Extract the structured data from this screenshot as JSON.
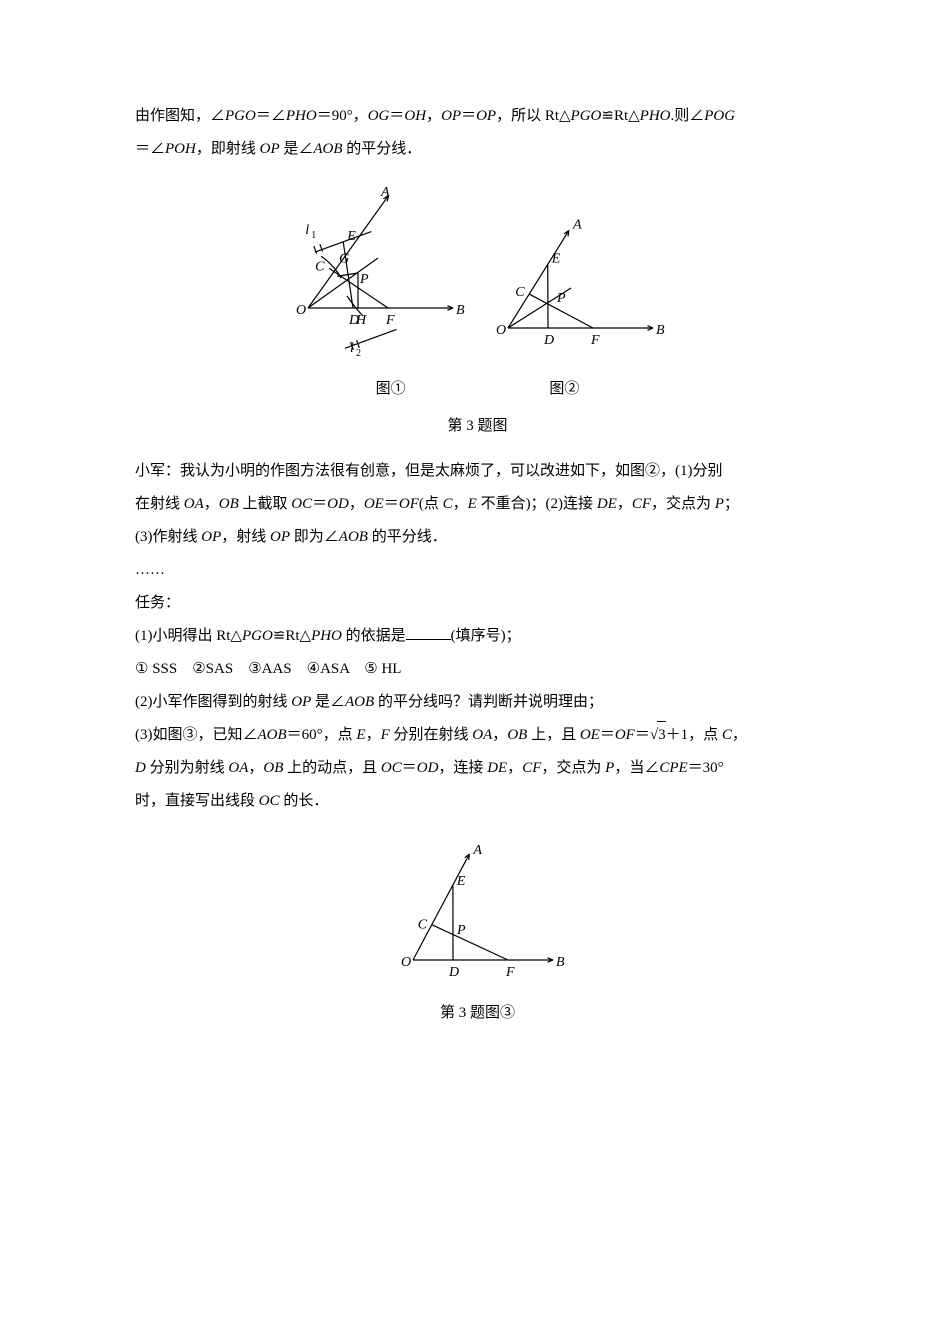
{
  "p1_a": "由作图知，∠",
  "p1_b": "PGO",
  "p1_c": "＝∠",
  "p1_d": "PHO",
  "p1_e": "＝90°，",
  "p1_f": "OG",
  "p1_g": "＝",
  "p1_h": "OH",
  "p1_i": "，",
  "p1_j": "OP",
  "p1_k": "＝",
  "p1_l": "OP",
  "p1_m": "，所以 Rt△",
  "p1_n": "PGO",
  "p1_o": "≌Rt△",
  "p1_p": "PHO",
  "p1_q": ".则∠",
  "p1_r": "POG",
  "p2_a": "＝∠",
  "p2_b": "POH",
  "p2_c": "，即射线 ",
  "p2_d": "OP",
  "p2_e": " 是∠",
  "p2_f": "AOB",
  "p2_g": " 的平分线．",
  "fig1_label1": "图①",
  "fig1_label2": "图②",
  "fig1_caption": "第 3 题图",
  "p3_a": "小军：我认为小明的作图方法很有创意，但是太麻烦了，可以改进如下，如图②，(1)分别",
  "p4_a": "在射线 ",
  "p4_b": "OA",
  "p4_c": "，",
  "p4_d": "OB",
  "p4_e": " 上截取 ",
  "p4_f": "OC",
  "p4_g": "＝",
  "p4_h": "OD",
  "p4_i": "，",
  "p4_j": "OE",
  "p4_k": "＝",
  "p4_l": "OF",
  "p4_m": "(点 ",
  "p4_n": "C",
  "p4_o": "，",
  "p4_p": "E",
  "p4_q": " 不重合)；(2)连接 ",
  "p4_r": "DE",
  "p4_s": "，",
  "p4_t": "CF",
  "p4_u": "，交点为 ",
  "p4_v": "P",
  "p4_w": "；",
  "p5_a": "(3)作射线 ",
  "p5_b": "OP",
  "p5_c": "，射线 ",
  "p5_d": "OP",
  "p5_e": " 即为∠",
  "p5_f": "AOB",
  "p5_g": " 的平分线．",
  "p6": "……",
  "p7": "任务：",
  "p8_a": "(1)小明得出 Rt△",
  "p8_b": "PGO",
  "p8_c": "≌Rt△",
  "p8_d": "PHO",
  "p8_e": " 的依据是",
  "p8_f": "(填序号)；",
  "p9": "① SSS　②SAS　③AAS　④ASA　⑤ HL",
  "p10_a": "(2)小军作图得到的射线 ",
  "p10_b": "OP",
  "p10_c": " 是∠",
  "p10_d": "AOB",
  "p10_e": " 的平分线吗？请判断并说明理由；",
  "p11_a": "(3)如图③，已知∠",
  "p11_b": "AOB",
  "p11_c": "＝60°，点 ",
  "p11_d": "E",
  "p11_e": "，",
  "p11_f": "F",
  "p11_g": " 分别在射线 ",
  "p11_h": "OA",
  "p11_i": "，",
  "p11_j": "OB",
  "p11_k": " 上，且 ",
  "p11_l": "OE",
  "p11_m": "＝",
  "p11_n": "OF",
  "p11_o": "＝",
  "p11_sqrt": "3",
  "p11_p": "＋1，点 ",
  "p11_q": "C",
  "p11_r": "，",
  "p12_a": "D",
  "p12_b": " 分别为射线 ",
  "p12_c": "OA",
  "p12_d": "，",
  "p12_e": "OB",
  "p12_f": " 上的动点，且 ",
  "p12_g": "OC",
  "p12_h": "＝",
  "p12_i": "OD",
  "p12_j": "，连接 ",
  "p12_k": "DE",
  "p12_l": "，",
  "p12_m": "CF",
  "p12_n": "，交点为 ",
  "p12_o": "P",
  "p12_p": "，当∠",
  "p12_q": "CPE",
  "p12_r": "＝30°",
  "p13_a": "时，直接写出线段 ",
  "p13_b": "OC",
  "p13_c": " 的长．",
  "fig3_caption": "第 3 题图③",
  "svg": {
    "stroke": "#000000",
    "stroke_width": 1.2,
    "font_family": "Times New Roman, serif",
    "label_fs": 14
  }
}
